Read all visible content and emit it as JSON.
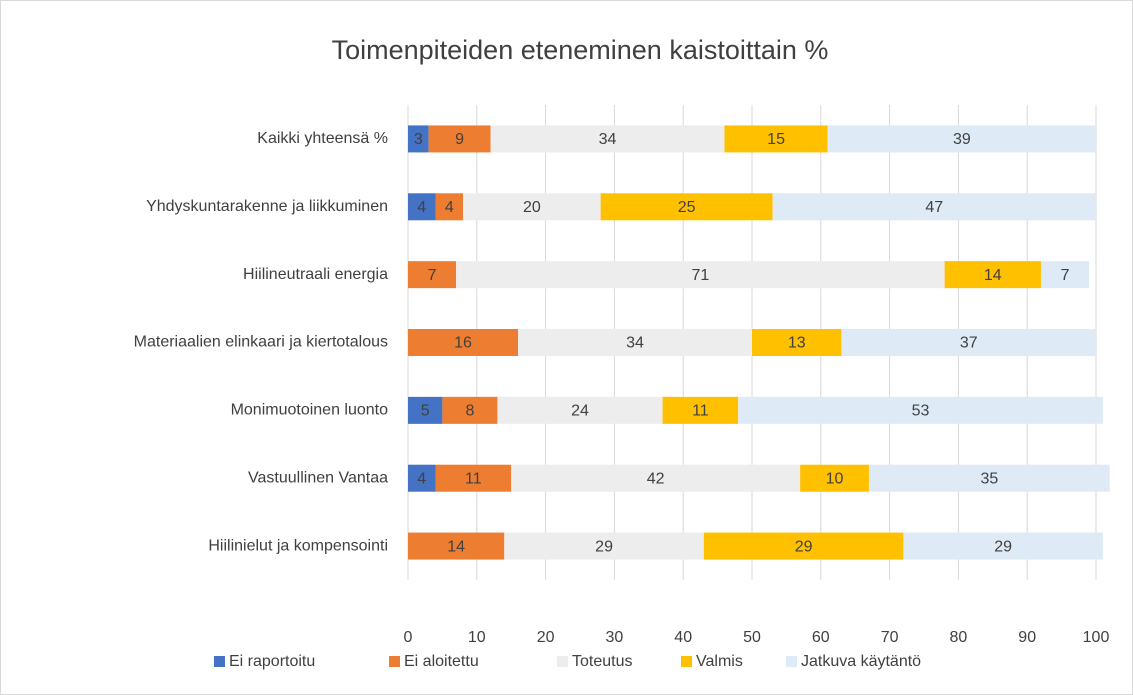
{
  "chart_data": {
    "type": "stacked_barh",
    "title": "Toimenpiteiden eteneminen kaistoittain %",
    "categories": [
      "Kaikki yhteensä %",
      "Yhdyskuntarakenne ja liikkuminen",
      "Hiilineutraali energia",
      "Materiaalien elinkaari ja kiertotalous",
      "Monimuotoinen luonto",
      "Vastuullinen Vantaa",
      "Hiilinielut ja kompensointi"
    ],
    "series": [
      {
        "name": "Ei raportoitu",
        "color": "#4472c4",
        "values": [
          3,
          4,
          null,
          null,
          5,
          4,
          null
        ]
      },
      {
        "name": "Ei aloitettu",
        "color": "#ed7d31",
        "values": [
          9,
          4,
          7,
          16,
          8,
          11,
          14
        ]
      },
      {
        "name": "Toteutus",
        "color": "#ededed",
        "values": [
          34,
          20,
          71,
          34,
          24,
          42,
          29
        ]
      },
      {
        "name": "Valmis",
        "color": "#ffc000",
        "values": [
          15,
          25,
          14,
          13,
          11,
          10,
          29
        ]
      },
      {
        "name": "Jatkuva käytäntö",
        "color": "#deebf7",
        "values": [
          39,
          47,
          7,
          37,
          53,
          35,
          29
        ]
      }
    ],
    "xlim": [
      0,
      100
    ],
    "xticks": [
      0,
      10,
      20,
      30,
      40,
      50,
      60,
      70,
      80,
      90,
      100
    ],
    "grid": true,
    "legend": "bottom"
  }
}
